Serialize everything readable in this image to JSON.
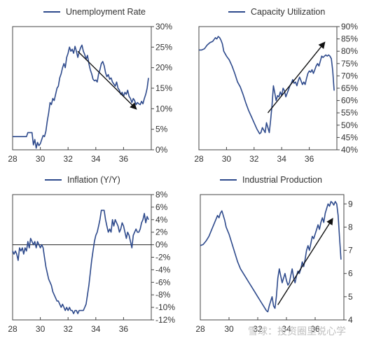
{
  "colors": {
    "line": "#2E4A8C",
    "axis": "#444444",
    "arrow": "#111111",
    "zero": "#222222"
  },
  "watermark": {
    "text": "雪球：投资圈里说心学"
  },
  "chart_data": [
    {
      "type": "line",
      "legend": "Unemployment Rate",
      "legend_position": "top-right",
      "xlim": [
        28,
        38
      ],
      "ylim": [
        0,
        30
      ],
      "x_ticks": [
        "28",
        "30",
        "32",
        "34",
        "36"
      ],
      "y_ticks": [
        "0%",
        "5%",
        "10%",
        "15%",
        "20%",
        "25%",
        "30%"
      ],
      "series": [
        {
          "x": [
            28.0,
            29.0,
            29.1,
            29.4,
            29.5,
            29.6,
            29.7,
            29.8,
            29.9,
            30.0,
            30.1,
            30.2,
            30.3,
            30.4,
            30.5,
            30.6,
            30.7,
            30.8,
            30.9,
            31.0,
            31.1,
            31.2,
            31.3,
            31.4,
            31.5,
            31.6,
            31.7,
            31.8,
            31.9,
            32.0,
            32.1,
            32.2,
            32.3,
            32.4,
            32.5,
            32.6,
            32.7,
            32.8,
            32.9,
            33.0,
            33.1,
            33.2,
            33.3,
            33.4,
            33.5,
            33.6,
            33.7,
            33.8,
            33.9,
            34.0,
            34.1,
            34.2,
            34.3,
            34.4,
            34.5,
            34.6,
            34.7,
            34.8,
            34.9,
            35.0,
            35.1,
            35.2,
            35.3,
            35.4,
            35.5,
            35.6,
            35.7,
            35.8,
            35.9,
            36.0,
            36.1,
            36.2,
            36.3,
            36.4,
            36.5,
            36.6,
            36.7,
            36.8,
            36.9,
            37.0,
            37.1,
            37.2,
            37.3,
            37.4,
            37.5,
            37.6,
            37.7,
            37.8
          ],
          "y": [
            3.2,
            3.2,
            4.2,
            4.2,
            1.2,
            2.5,
            0.4,
            1.8,
            1.0,
            1.5,
            2.5,
            3.5,
            3.2,
            4.5,
            7.0,
            9.0,
            11.5,
            11.0,
            12.5,
            12.0,
            13.5,
            15.0,
            15.5,
            17.5,
            18.5,
            20.0,
            21.0,
            20.0,
            22.5,
            23.5,
            25.0,
            24.0,
            24.5,
            23.5,
            25.2,
            24.0,
            22.5,
            23.8,
            24.8,
            25.5,
            24.0,
            23.2,
            22.0,
            23.0,
            21.0,
            19.5,
            18.5,
            17.2,
            16.8,
            17.0,
            16.5,
            18.5,
            19.5,
            21.0,
            21.5,
            20.5,
            18.8,
            17.8,
            18.3,
            17.2,
            17.5,
            16.5,
            16.0,
            15.5,
            16.5,
            15.0,
            14.5,
            13.5,
            14.0,
            13.0,
            14.0,
            13.5,
            14.5,
            13.0,
            12.5,
            11.5,
            12.5,
            12.0,
            11.0,
            11.5,
            11.2,
            11.0,
            11.8,
            11.2,
            12.5,
            13.5,
            15.0,
            17.5
          ]
        }
      ],
      "arrow": {
        "from": [
          32.7,
          24.0
        ],
        "to": [
          36.9,
          10.0
        ]
      }
    },
    {
      "type": "line",
      "legend": "Capacity Utilization",
      "legend_position": "top-right",
      "xlim": [
        28,
        38
      ],
      "ylim": [
        40,
        90
      ],
      "x_ticks": [
        "28",
        "30",
        "32",
        "34",
        "36"
      ],
      "y_ticks": [
        "40%",
        "45%",
        "50%",
        "55%",
        "60%",
        "65%",
        "70%",
        "75%",
        "80%",
        "85%",
        "90%"
      ],
      "series": [
        {
          "x": [
            28.0,
            28.2,
            28.4,
            28.6,
            28.8,
            29.0,
            29.2,
            29.3,
            29.4,
            29.5,
            29.6,
            29.7,
            29.8,
            30.0,
            30.2,
            30.4,
            30.6,
            30.8,
            31.0,
            31.2,
            31.4,
            31.6,
            31.8,
            32.0,
            32.2,
            32.4,
            32.5,
            32.6,
            32.7,
            32.8,
            32.9,
            33.0,
            33.1,
            33.2,
            33.3,
            33.4,
            33.5,
            33.6,
            33.7,
            33.8,
            33.9,
            34.0,
            34.1,
            34.2,
            34.3,
            34.4,
            34.5,
            34.6,
            34.7,
            34.8,
            34.9,
            35.0,
            35.1,
            35.2,
            35.3,
            35.4,
            35.5,
            35.6,
            35.7,
            35.8,
            35.9,
            36.0,
            36.1,
            36.2,
            36.3,
            36.4,
            36.5,
            36.6,
            36.7,
            36.8,
            36.9,
            37.0,
            37.1,
            37.2,
            37.3,
            37.4,
            37.5,
            37.6,
            37.7,
            37.8
          ],
          "y": [
            80.5,
            80.5,
            81.0,
            82.5,
            83.5,
            84.0,
            85.5,
            85.0,
            86.0,
            85.5,
            84.5,
            83.0,
            80.0,
            78.0,
            76.5,
            74.0,
            71.0,
            67.5,
            65.5,
            62.5,
            59.0,
            56.0,
            53.5,
            51.0,
            48.5,
            46.5,
            47.0,
            49.0,
            48.0,
            47.0,
            51.0,
            49.0,
            47.0,
            52.0,
            58.0,
            66.0,
            63.0,
            60.0,
            62.0,
            61.5,
            63.5,
            62.0,
            65.0,
            64.0,
            61.5,
            63.0,
            64.5,
            66.0,
            67.0,
            68.5,
            67.0,
            67.5,
            66.0,
            68.0,
            69.5,
            68.0,
            66.5,
            67.5,
            66.5,
            69.0,
            71.0,
            72.0,
            71.5,
            72.5,
            71.0,
            72.5,
            74.0,
            75.0,
            74.0,
            76.0,
            78.0,
            77.5,
            78.0,
            78.5,
            78.0,
            78.5,
            78.0,
            77.0,
            72.0,
            64.0
          ]
        }
      ],
      "arrow": {
        "from": [
          33.0,
          55.0
        ],
        "to": [
          37.1,
          83.5
        ]
      }
    },
    {
      "type": "line",
      "legend": "Inflation (Y/Y)",
      "legend_position": "top-left",
      "xlim": [
        28,
        38
      ],
      "ylim": [
        -12,
        8
      ],
      "x_ticks": [
        "28",
        "30",
        "32",
        "34",
        "36"
      ],
      "y_ticks": [
        "-12%",
        "-10%",
        "-8%",
        "-6%",
        "-4%",
        "-2%",
        "0%",
        "2%",
        "4%",
        "6%",
        "8%"
      ],
      "series": [
        {
          "x": [
            28.0,
            28.1,
            28.2,
            28.3,
            28.4,
            28.5,
            28.6,
            28.7,
            28.8,
            28.9,
            29.0,
            29.1,
            29.2,
            29.3,
            29.4,
            29.5,
            29.6,
            29.7,
            29.8,
            29.9,
            30.0,
            30.1,
            30.2,
            30.3,
            30.4,
            30.5,
            30.6,
            30.7,
            30.8,
            30.9,
            31.0,
            31.1,
            31.2,
            31.3,
            31.4,
            31.5,
            31.6,
            31.7,
            31.8,
            31.9,
            32.0,
            32.1,
            32.2,
            32.3,
            32.4,
            32.5,
            32.6,
            32.7,
            32.8,
            32.9,
            33.0,
            33.1,
            33.2,
            33.3,
            33.4,
            33.5,
            33.6,
            33.7,
            33.8,
            33.9,
            34.0,
            34.1,
            34.2,
            34.3,
            34.4,
            34.5,
            34.6,
            34.7,
            34.8,
            34.9,
            35.0,
            35.1,
            35.2,
            35.3,
            35.4,
            35.5,
            35.6,
            35.7,
            35.8,
            35.9,
            36.0,
            36.1,
            36.2,
            36.3,
            36.4,
            36.5,
            36.6,
            36.7,
            36.8,
            36.9,
            37.0,
            37.1,
            37.2,
            37.3,
            37.4,
            37.5,
            37.6,
            37.7,
            37.8
          ],
          "y": [
            -1.0,
            -1.5,
            -1.0,
            -1.5,
            -2.5,
            -0.5,
            -1.0,
            -0.5,
            -1.5,
            -0.5,
            -1.0,
            0.5,
            -0.5,
            1.0,
            0.5,
            0.0,
            0.5,
            -0.5,
            0.5,
            0.0,
            -0.5,
            0.0,
            -0.5,
            -2.0,
            -3.5,
            -4.5,
            -5.5,
            -6.0,
            -6.5,
            -7.5,
            -8.0,
            -8.5,
            -9.0,
            -9.0,
            -9.5,
            -10.0,
            -9.5,
            -10.0,
            -10.5,
            -10.0,
            -10.5,
            -10.0,
            -10.5,
            -10.5,
            -11.0,
            -10.5,
            -10.5,
            -11.0,
            -10.5,
            -10.5,
            -10.5,
            -10.5,
            -10.0,
            -9.5,
            -8.0,
            -6.5,
            -4.5,
            -2.5,
            -1.0,
            0.5,
            1.5,
            2.0,
            3.0,
            4.0,
            5.5,
            5.5,
            5.5,
            4.0,
            3.0,
            2.0,
            2.5,
            2.0,
            4.0,
            3.0,
            4.0,
            3.5,
            3.0,
            2.0,
            2.5,
            3.5,
            3.0,
            2.0,
            1.0,
            2.0,
            1.5,
            0.5,
            -0.5,
            1.5,
            2.0,
            2.5,
            2.0,
            2.0,
            2.5,
            3.5,
            4.0,
            5.0,
            3.5,
            4.5,
            4.0
          ]
        }
      ],
      "zero_line": 0
    },
    {
      "type": "line",
      "legend": "Industrial Production",
      "legend_position": "top-left",
      "xlim": [
        28,
        38
      ],
      "ylim": [
        4,
        9.4
      ],
      "x_ticks": [
        "28",
        "30",
        "32",
        "34",
        "36"
      ],
      "y_ticks": [
        "4",
        "5",
        "6",
        "7",
        "8",
        "9"
      ],
      "series": [
        {
          "x": [
            28.0,
            28.2,
            28.4,
            28.6,
            28.8,
            29.0,
            29.2,
            29.3,
            29.4,
            29.5,
            29.6,
            29.7,
            29.8,
            30.0,
            30.2,
            30.4,
            30.6,
            30.8,
            31.0,
            31.2,
            31.4,
            31.6,
            31.8,
            32.0,
            32.2,
            32.4,
            32.5,
            32.6,
            32.7,
            32.8,
            32.9,
            33.0,
            33.1,
            33.2,
            33.3,
            33.4,
            33.5,
            33.6,
            33.7,
            33.8,
            33.9,
            34.0,
            34.1,
            34.2,
            34.3,
            34.4,
            34.5,
            34.6,
            34.7,
            34.8,
            34.9,
            35.0,
            35.1,
            35.2,
            35.3,
            35.4,
            35.5,
            35.6,
            35.7,
            35.8,
            35.9,
            36.0,
            36.1,
            36.2,
            36.3,
            36.4,
            36.5,
            36.6,
            36.7,
            36.8,
            36.9,
            37.0,
            37.1,
            37.2,
            37.3,
            37.4,
            37.5,
            37.6,
            37.7,
            37.8
          ],
          "y": [
            7.2,
            7.25,
            7.4,
            7.6,
            7.9,
            8.2,
            8.5,
            8.4,
            8.6,
            8.7,
            8.5,
            8.3,
            8.0,
            7.7,
            7.3,
            6.9,
            6.5,
            6.2,
            6.0,
            5.8,
            5.6,
            5.4,
            5.2,
            5.0,
            4.8,
            4.6,
            4.5,
            4.4,
            4.35,
            4.6,
            4.8,
            5.0,
            4.6,
            4.5,
            5.0,
            5.8,
            6.2,
            5.9,
            5.6,
            5.8,
            6.0,
            5.7,
            5.5,
            5.6,
            5.9,
            6.2,
            5.8,
            5.6,
            5.9,
            6.1,
            6.0,
            6.2,
            6.5,
            6.3,
            6.6,
            7.0,
            7.2,
            7.0,
            7.3,
            7.6,
            7.5,
            7.7,
            7.9,
            8.1,
            7.9,
            8.2,
            8.4,
            8.2,
            8.6,
            8.8,
            9.0,
            8.9,
            9.1,
            9.05,
            8.95,
            9.1,
            9.0,
            8.5,
            7.5,
            6.6
          ]
        }
      ],
      "arrow": {
        "from": [
          33.4,
          4.65
        ],
        "to": [
          37.2,
          8.35
        ]
      }
    }
  ]
}
